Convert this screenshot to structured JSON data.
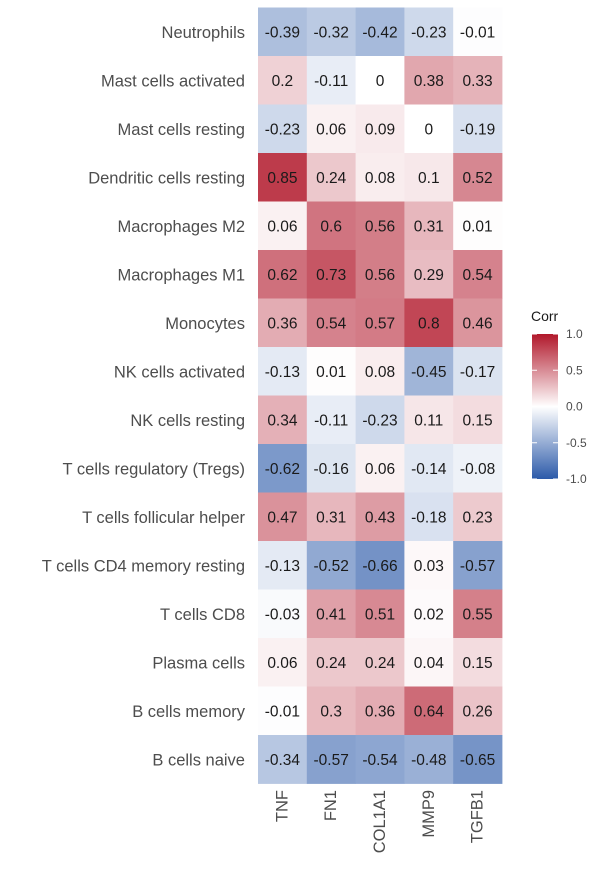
{
  "chart_data": {
    "type": "heatmap",
    "rows": [
      "Neutrophils",
      "Mast cells activated",
      "Mast cells resting",
      "Dendritic cells resting",
      "Macrophages M2",
      "Macrophages M1",
      "Monocytes",
      "NK cells activated",
      "NK cells resting",
      "T cells regulatory (Tregs)",
      "T cells follicular helper",
      "T cells CD4 memory resting",
      "T cells CD8",
      "Plasma cells",
      "B cells memory",
      "B cells naive"
    ],
    "columns": [
      "TNF",
      "FN1",
      "COL1A1",
      "MMP9",
      "TGFB1"
    ],
    "values": [
      [
        -0.39,
        -0.32,
        -0.42,
        -0.23,
        -0.01
      ],
      [
        0.2,
        -0.11,
        0,
        0.38,
        0.33
      ],
      [
        -0.23,
        0.06,
        0.09,
        0,
        -0.19
      ],
      [
        0.85,
        0.24,
        0.08,
        0.1,
        0.52
      ],
      [
        0.06,
        0.6,
        0.56,
        0.31,
        0.01
      ],
      [
        0.62,
        0.73,
        0.56,
        0.29,
        0.54
      ],
      [
        0.36,
        0.54,
        0.57,
        0.8,
        0.46
      ],
      [
        -0.13,
        0.01,
        0.08,
        -0.45,
        -0.17
      ],
      [
        0.34,
        -0.11,
        -0.23,
        0.11,
        0.15
      ],
      [
        -0.62,
        -0.16,
        0.06,
        -0.14,
        -0.08
      ],
      [
        0.47,
        0.31,
        0.43,
        -0.18,
        0.23
      ],
      [
        -0.13,
        -0.52,
        -0.66,
        0.03,
        -0.57
      ],
      [
        -0.03,
        0.41,
        0.51,
        0.02,
        0.55
      ],
      [
        0.06,
        0.24,
        0.24,
        0.04,
        0.15
      ],
      [
        -0.01,
        0.3,
        0.36,
        0.64,
        0.26
      ],
      [
        -0.34,
        -0.57,
        -0.54,
        -0.48,
        -0.65
      ]
    ],
    "value_labels": [
      [
        "-0.39",
        "-0.32",
        "-0.42",
        "-0.23",
        "-0.01"
      ],
      [
        "0.2",
        "-0.11",
        "0",
        "0.38",
        "0.33"
      ],
      [
        "-0.23",
        "0.06",
        "0.09",
        "0",
        "-0.19"
      ],
      [
        "0.85",
        "0.24",
        "0.08",
        "0.1",
        "0.52"
      ],
      [
        "0.06",
        "0.6",
        "0.56",
        "0.31",
        "0.01"
      ],
      [
        "0.62",
        "0.73",
        "0.56",
        "0.29",
        "0.54"
      ],
      [
        "0.36",
        "0.54",
        "0.57",
        "0.8",
        "0.46"
      ],
      [
        "-0.13",
        "0.01",
        "0.08",
        "-0.45",
        "-0.17"
      ],
      [
        "0.34",
        "-0.11",
        "-0.23",
        "0.11",
        "0.15"
      ],
      [
        "-0.62",
        "-0.16",
        "0.06",
        "-0.14",
        "-0.08"
      ],
      [
        "0.47",
        "0.31",
        "0.43",
        "-0.18",
        "0.23"
      ],
      [
        "-0.13",
        "-0.52",
        "-0.66",
        "0.03",
        "-0.57"
      ],
      [
        "-0.03",
        "0.41",
        "0.51",
        "0.02",
        "0.55"
      ],
      [
        "0.06",
        "0.24",
        "0.24",
        "0.04",
        "0.15"
      ],
      [
        "-0.01",
        "0.3",
        "0.36",
        "0.64",
        "0.26"
      ],
      [
        "-0.34",
        "-0.57",
        "-0.54",
        "-0.48",
        "-0.65"
      ]
    ],
    "legend": {
      "title": "Corr",
      "range": [
        -1.0,
        1.0
      ],
      "ticks": [
        1.0,
        0.5,
        0.0,
        -0.5,
        -1.0
      ],
      "tick_labels": [
        "1.0",
        "0.5",
        "0.0",
        "-0.5",
        "-1.0"
      ],
      "placement": "right"
    },
    "colors": {
      "low": "#2c5aa9",
      "mid": "#ffffff",
      "high": "#b1182b"
    },
    "grid": false
  }
}
